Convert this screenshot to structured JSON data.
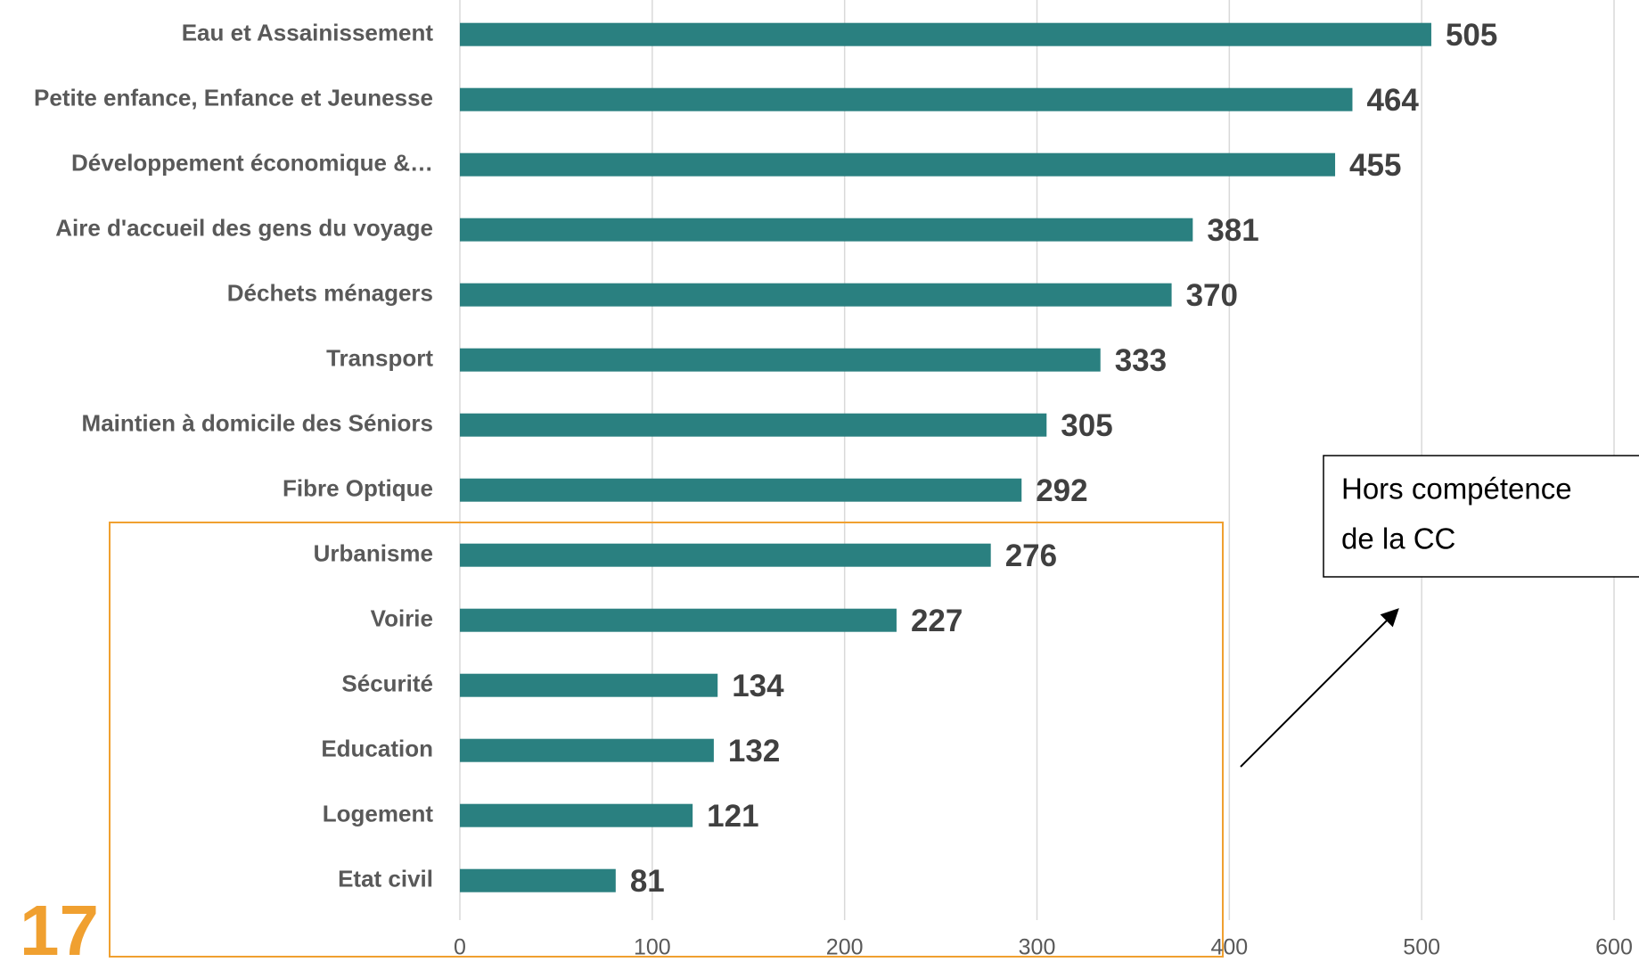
{
  "chart_data": {
    "type": "bar",
    "orientation": "horizontal",
    "categories": [
      "Eau et Assainissement",
      "Petite enfance, Enfance et Jeunesse",
      "Développement économique &…",
      "Aire d'accueil des gens du voyage",
      "Déchets ménagers",
      "Transport",
      "Maintien à domicile des Séniors",
      "Fibre Optique",
      "Urbanisme",
      "Voirie",
      "Sécurité",
      "Education",
      "Logement",
      "Etat civil"
    ],
    "values": [
      505,
      464,
      455,
      381,
      370,
      333,
      305,
      292,
      276,
      227,
      134,
      132,
      121,
      81
    ],
    "color": "#2a8080",
    "xlim": [
      0,
      600
    ],
    "xticks": [
      0,
      100,
      200,
      300,
      400,
      500,
      600
    ],
    "grid": true,
    "annotation": [
      "Hors compétence",
      "de la CC"
    ],
    "page_number": "17"
  }
}
